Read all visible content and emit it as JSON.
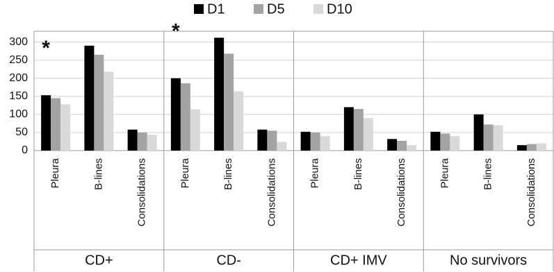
{
  "chart_data": {
    "type": "grouped-bar",
    "groups": [
      "CD+",
      "CD-",
      "CD+ IMV",
      "No survivors"
    ],
    "categories": [
      "Pleura",
      "B-lines",
      "Consolidations",
      "Pleura",
      "B-lines",
      "Consolidations",
      "Pleura",
      "B-lines",
      "Consolidations",
      "Pleura",
      "B-lines",
      "Consolidations"
    ],
    "category_annotations": [
      "*",
      null,
      null,
      "*",
      null,
      null,
      null,
      null,
      null,
      null,
      null,
      null
    ],
    "series": [
      {
        "name": "D1",
        "color": "#000000",
        "values": [
          153,
          290,
          58,
          200,
          312,
          58,
          52,
          120,
          32,
          52,
          100,
          15
        ]
      },
      {
        "name": "D5",
        "color": "#a3a3a3",
        "values": [
          145,
          265,
          50,
          186,
          268,
          55,
          50,
          115,
          27,
          47,
          72,
          18
        ]
      },
      {
        "name": "D10",
        "color": "#d9d9d9",
        "values": [
          128,
          218,
          44,
          114,
          164,
          24,
          40,
          90,
          15,
          40,
          70,
          20
        ]
      }
    ],
    "ylim": [
      0,
      330
    ],
    "yticks": [
      0,
      50,
      100,
      150,
      200,
      250,
      300
    ],
    "grid": true,
    "legend": "top"
  }
}
